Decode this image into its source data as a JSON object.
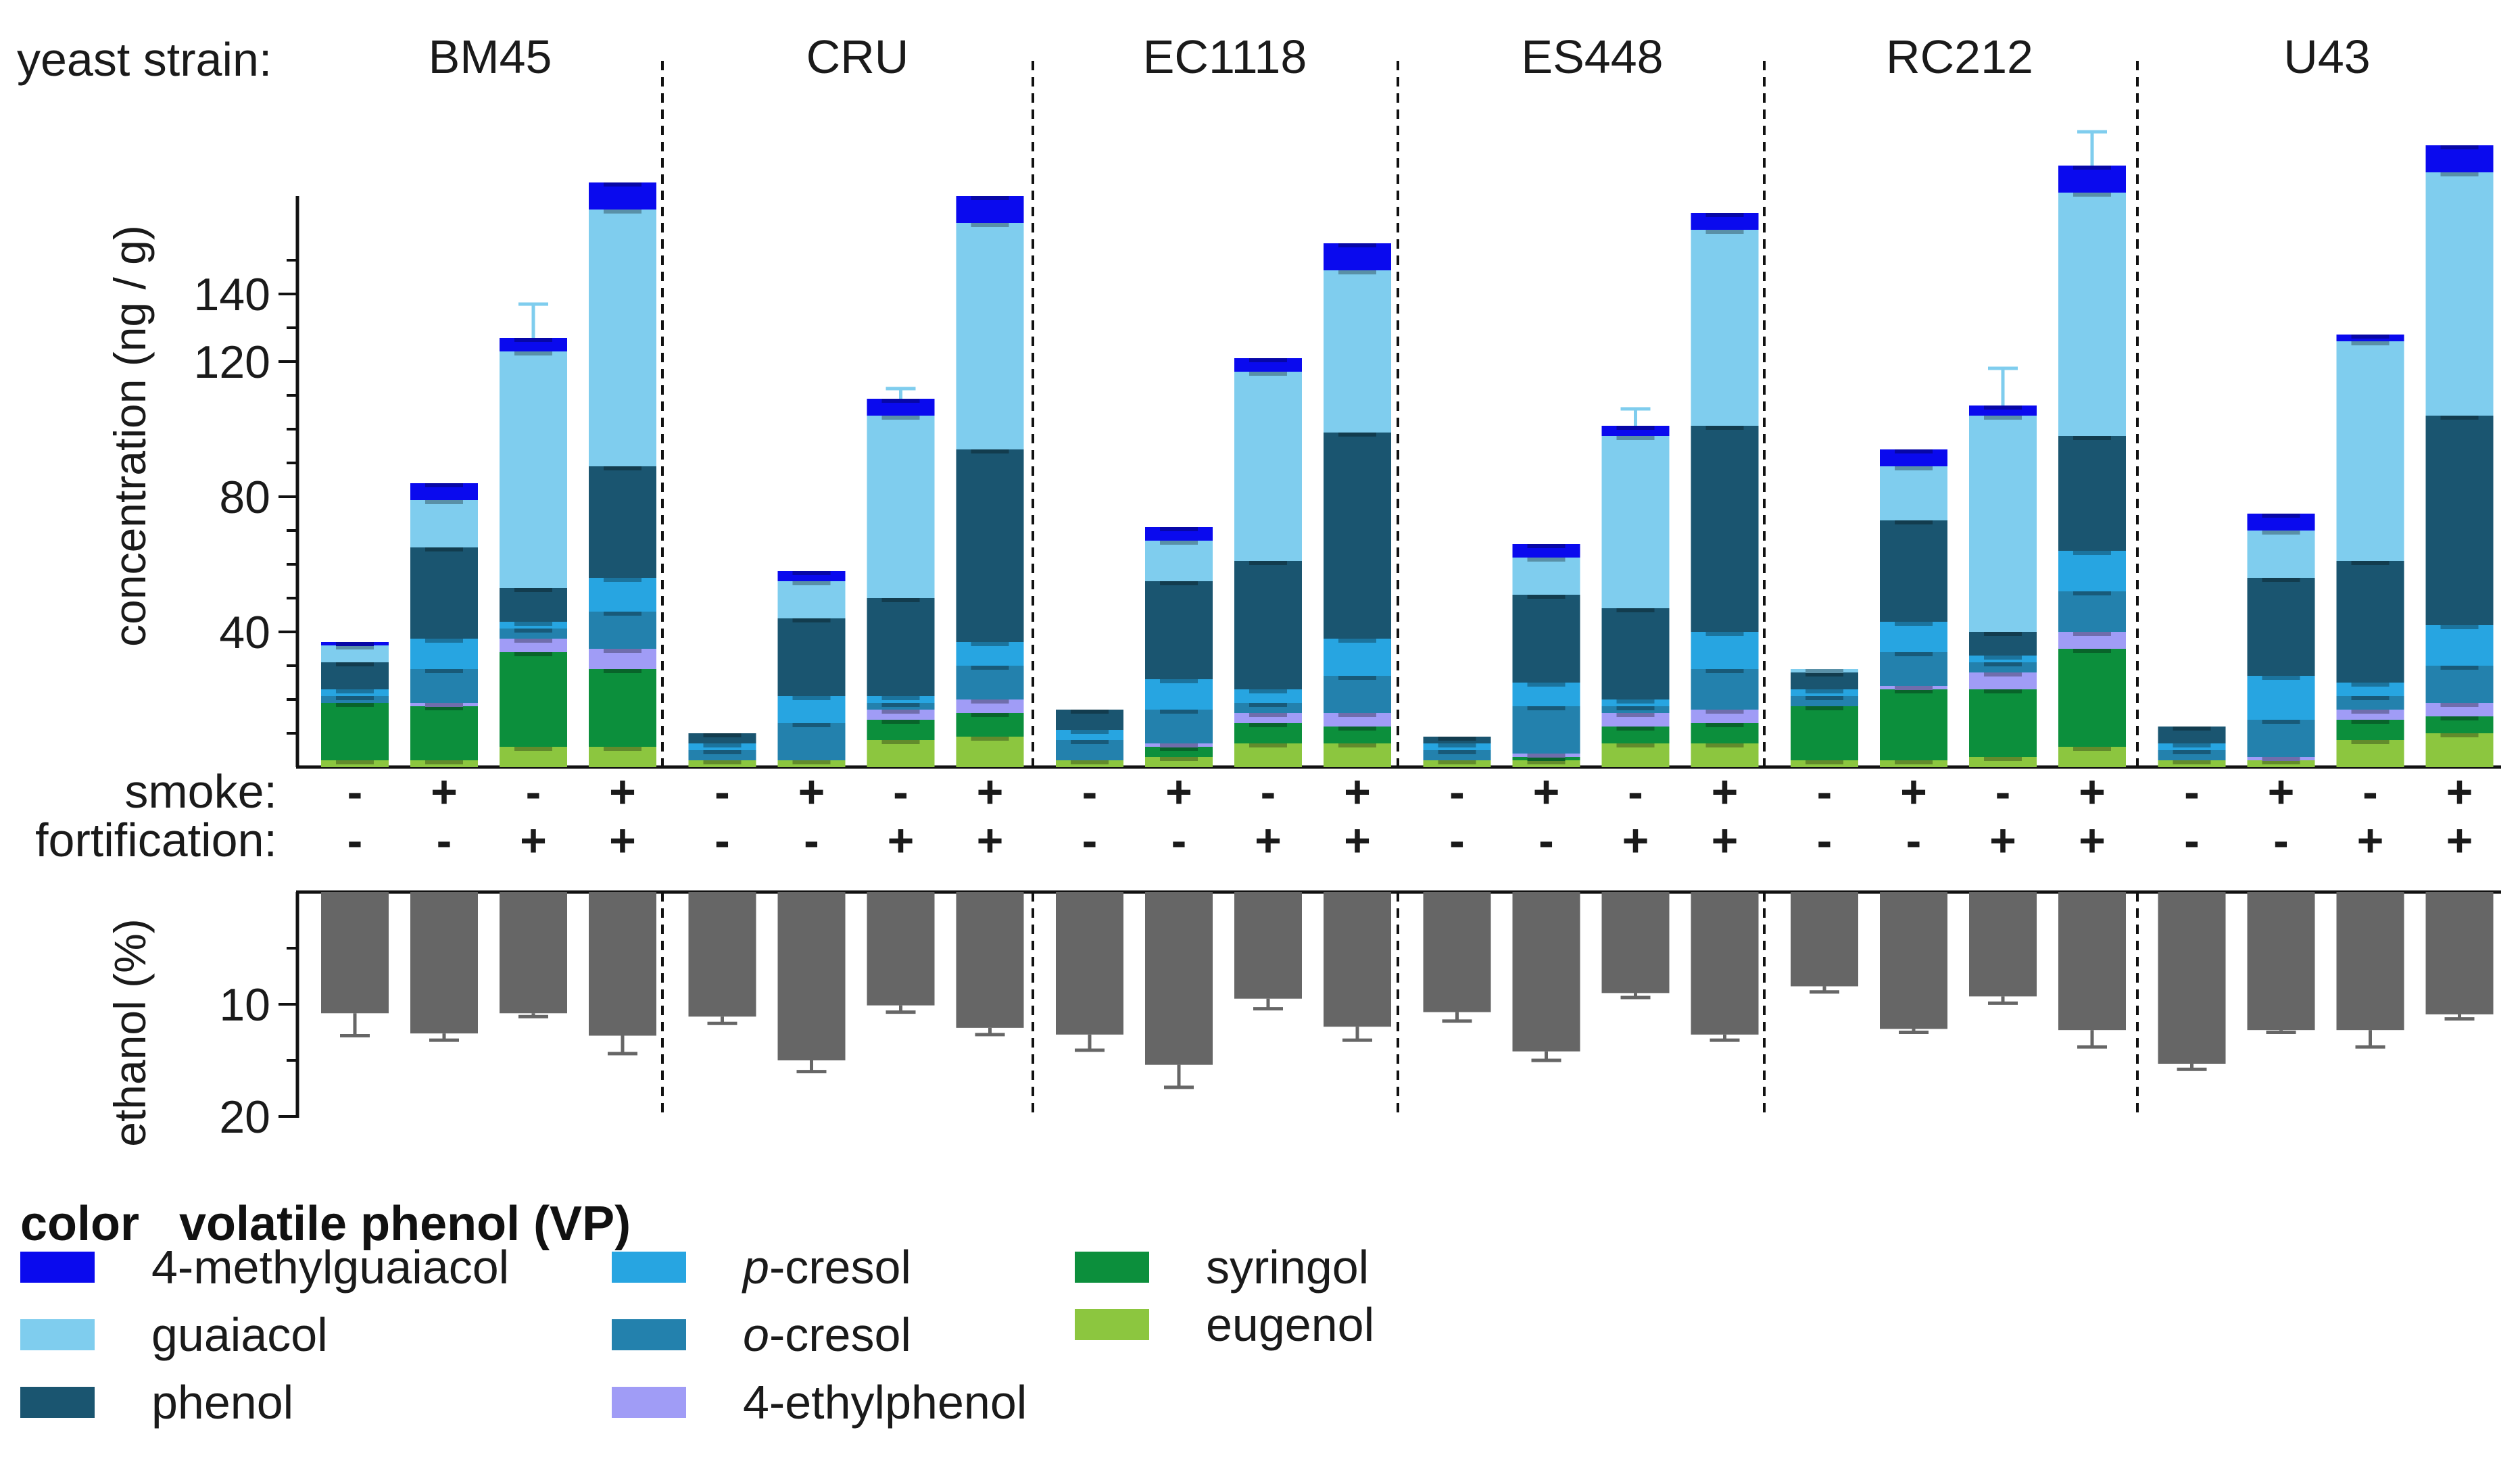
{
  "chart_data": {
    "type": "bar",
    "stacked": true,
    "title": "",
    "strain_axis_label": "yeast strain:",
    "strains": [
      "BM45",
      "CRU",
      "EC1118",
      "ES448",
      "RC212",
      "U43"
    ],
    "treatment_rows": [
      {
        "label": "smoke:",
        "values": [
          "-",
          "+",
          "-",
          "+"
        ]
      },
      {
        "label": "fortification:",
        "values": [
          "-",
          "-",
          "+",
          "+"
        ]
      }
    ],
    "top_panel": {
      "ylabel": "concentration (ng / g)",
      "ylim": [
        0,
        170
      ],
      "yticks": [
        40,
        80,
        120,
        140
      ],
      "series_order_bottom_to_top": [
        "eugenol",
        "syringol",
        "4-ethylphenol",
        "o-cresol",
        "p-cresol",
        "phenol",
        "guaiacol",
        "4-methylguaiacol"
      ],
      "bars": [
        {
          "strain": "BM45",
          "treatment": "smoke- fort-",
          "values": {
            "eugenol": 2,
            "syringol": 17,
            "4-ethylphenol": 0,
            "o-cresol": 2,
            "p-cresol": 2,
            "phenol": 8,
            "guaiacol": 5,
            "4-methylguaiacol": 1
          },
          "total_error": 0
        },
        {
          "strain": "BM45",
          "treatment": "smoke+ fort-",
          "values": {
            "eugenol": 2,
            "syringol": 16,
            "4-ethylphenol": 1,
            "o-cresol": 10,
            "p-cresol": 9,
            "phenol": 27,
            "guaiacol": 14,
            "4-methylguaiacol": 5
          },
          "total_error": 0
        },
        {
          "strain": "BM45",
          "treatment": "smoke- fort+",
          "values": {
            "eugenol": 6,
            "syringol": 28,
            "4-ethylphenol": 4,
            "o-cresol": 3,
            "p-cresol": 2,
            "phenol": 10,
            "guaiacol": 70,
            "4-methylguaiacol": 4
          },
          "total_error": 10
        },
        {
          "strain": "BM45",
          "treatment": "smoke+ fort+",
          "values": {
            "eugenol": 6,
            "syringol": 23,
            "4-ethylphenol": 6,
            "o-cresol": 11,
            "p-cresol": 10,
            "phenol": 33,
            "guaiacol": 76,
            "4-methylguaiacol": 8
          },
          "total_error": 0
        },
        {
          "strain": "CRU",
          "treatment": "smoke- fort-",
          "values": {
            "eugenol": 2,
            "syringol": 0,
            "4-ethylphenol": 0,
            "o-cresol": 3,
            "p-cresol": 2,
            "phenol": 3,
            "guaiacol": 0,
            "4-methylguaiacol": 0
          },
          "total_error": 0
        },
        {
          "strain": "CRU",
          "treatment": "smoke+ fort-",
          "values": {
            "eugenol": 2,
            "syringol": 0,
            "4-ethylphenol": 0,
            "o-cresol": 11,
            "p-cresol": 8,
            "phenol": 23,
            "guaiacol": 11,
            "4-methylguaiacol": 3
          },
          "total_error": 0
        },
        {
          "strain": "CRU",
          "treatment": "smoke- fort+",
          "values": {
            "eugenol": 8,
            "syringol": 6,
            "4-ethylphenol": 3,
            "o-cresol": 2,
            "p-cresol": 2,
            "phenol": 29,
            "guaiacol": 54,
            "4-methylguaiacol": 5
          },
          "total_error": 3
        },
        {
          "strain": "CRU",
          "treatment": "smoke+ fort+",
          "values": {
            "eugenol": 9,
            "syringol": 7,
            "4-ethylphenol": 4,
            "o-cresol": 10,
            "p-cresol": 7,
            "phenol": 57,
            "guaiacol": 67,
            "4-methylguaiacol": 8
          },
          "total_error": 0
        },
        {
          "strain": "EC1118",
          "treatment": "smoke- fort-",
          "values": {
            "eugenol": 2,
            "syringol": 0,
            "4-ethylphenol": 0,
            "o-cresol": 6,
            "p-cresol": 3,
            "phenol": 6,
            "guaiacol": 0,
            "4-methylguaiacol": 0
          },
          "total_error": 0
        },
        {
          "strain": "EC1118",
          "treatment": "smoke+ fort-",
          "values": {
            "eugenol": 3,
            "syringol": 3,
            "4-ethylphenol": 1,
            "o-cresol": 10,
            "p-cresol": 9,
            "phenol": 29,
            "guaiacol": 12,
            "4-methylguaiacol": 4
          },
          "total_error": 0
        },
        {
          "strain": "EC1118",
          "treatment": "smoke- fort+",
          "values": {
            "eugenol": 7,
            "syringol": 6,
            "4-ethylphenol": 3,
            "o-cresol": 3,
            "p-cresol": 4,
            "phenol": 38,
            "guaiacol": 56,
            "4-methylguaiacol": 4
          },
          "total_error": 0
        },
        {
          "strain": "EC1118",
          "treatment": "smoke+ fort+",
          "values": {
            "eugenol": 7,
            "syringol": 5,
            "4-ethylphenol": 4,
            "o-cresol": 11,
            "p-cresol": 11,
            "phenol": 61,
            "guaiacol": 48,
            "4-methylguaiacol": 8
          },
          "total_error": 0
        },
        {
          "strain": "ES448",
          "treatment": "smoke- fort-",
          "values": {
            "eugenol": 2,
            "syringol": 0,
            "4-ethylphenol": 0,
            "o-cresol": 3,
            "p-cresol": 2,
            "phenol": 2,
            "guaiacol": 0,
            "4-methylguaiacol": 0
          },
          "total_error": 0
        },
        {
          "strain": "ES448",
          "treatment": "smoke+ fort-",
          "values": {
            "eugenol": 2,
            "syringol": 1,
            "4-ethylphenol": 1,
            "o-cresol": 14,
            "p-cresol": 7,
            "phenol": 26,
            "guaiacol": 11,
            "4-methylguaiacol": 4
          },
          "total_error": 0
        },
        {
          "strain": "ES448",
          "treatment": "smoke- fort+",
          "values": {
            "eugenol": 7,
            "syringol": 5,
            "4-ethylphenol": 4,
            "o-cresol": 2,
            "p-cresol": 2,
            "phenol": 27,
            "guaiacol": 51,
            "4-methylguaiacol": 3
          },
          "total_error": 5
        },
        {
          "strain": "ES448",
          "treatment": "smoke+ fort+",
          "values": {
            "eugenol": 7,
            "syringol": 6,
            "4-ethylphenol": 4,
            "o-cresol": 12,
            "p-cresol": 11,
            "phenol": 61,
            "guaiacol": 58,
            "4-methylguaiacol": 5
          },
          "total_error": 0
        },
        {
          "strain": "RC212",
          "treatment": "smoke- fort-",
          "values": {
            "eugenol": 2,
            "syringol": 16,
            "4-ethylphenol": 0,
            "o-cresol": 3,
            "p-cresol": 2,
            "phenol": 5,
            "guaiacol": 1,
            "4-methylguaiacol": 0
          },
          "total_error": 0
        },
        {
          "strain": "RC212",
          "treatment": "smoke+ fort-",
          "values": {
            "eugenol": 2,
            "syringol": 21,
            "4-ethylphenol": 1,
            "o-cresol": 10,
            "p-cresol": 9,
            "phenol": 30,
            "guaiacol": 16,
            "4-methylguaiacol": 5
          },
          "total_error": 0
        },
        {
          "strain": "RC212",
          "treatment": "smoke- fort+",
          "values": {
            "eugenol": 3,
            "syringol": 20,
            "4-ethylphenol": 5,
            "o-cresol": 3,
            "p-cresol": 2,
            "phenol": 7,
            "guaiacol": 64,
            "4-methylguaiacol": 3
          },
          "total_error": 11
        },
        {
          "strain": "RC212",
          "treatment": "smoke+ fort+",
          "values": {
            "eugenol": 6,
            "syringol": 29,
            "4-ethylphenol": 5,
            "o-cresol": 12,
            "p-cresol": 12,
            "phenol": 34,
            "guaiacol": 72,
            "4-methylguaiacol": 8
          },
          "total_error": 10
        },
        {
          "strain": "U43",
          "treatment": "smoke- fort-",
          "values": {
            "eugenol": 2,
            "syringol": 0,
            "4-ethylphenol": 0,
            "o-cresol": 3,
            "p-cresol": 2,
            "phenol": 5,
            "guaiacol": 0,
            "4-methylguaiacol": 0
          },
          "total_error": 0
        },
        {
          "strain": "U43",
          "treatment": "smoke+ fort-",
          "values": {
            "eugenol": 2,
            "syringol": 0,
            "4-ethylphenol": 1,
            "o-cresol": 11,
            "p-cresol": 13,
            "phenol": 29,
            "guaiacol": 14,
            "4-methylguaiacol": 5
          },
          "total_error": 0
        },
        {
          "strain": "U43",
          "treatment": "smoke- fort+",
          "values": {
            "eugenol": 8,
            "syringol": 6,
            "4-ethylphenol": 3,
            "o-cresol": 4,
            "p-cresol": 4,
            "phenol": 36,
            "guaiacol": 65,
            "4-methylguaiacol": 2
          },
          "total_error": 0
        },
        {
          "strain": "U43",
          "treatment": "smoke+ fort+",
          "values": {
            "eugenol": 10,
            "syringol": 5,
            "4-ethylphenol": 4,
            "o-cresol": 11,
            "p-cresol": 12,
            "phenol": 62,
            "guaiacol": 72,
            "4-methylguaiacol": 8
          },
          "total_error": 0
        }
      ]
    },
    "bottom_panel": {
      "ylabel": "ethanol (%)",
      "ylim": [
        0,
        20
      ],
      "inverted": true,
      "yticks": [
        10,
        20
      ],
      "values": [
        10.8,
        12.6,
        10.8,
        12.8,
        11.1,
        15.0,
        10.1,
        12.1,
        12.7,
        15.4,
        9.5,
        12.0,
        10.7,
        14.2,
        9.0,
        12.7,
        8.4,
        12.2,
        9.3,
        12.3,
        15.3,
        12.3,
        12.3,
        10.9
      ],
      "errors": [
        2.0,
        0.6,
        0.3,
        1.6,
        0.6,
        1.0,
        0.6,
        0.6,
        1.4,
        2.0,
        0.9,
        1.2,
        0.8,
        0.8,
        0.4,
        0.5,
        0.5,
        0.3,
        0.6,
        1.5,
        0.5,
        0.2,
        1.5,
        0.4
      ]
    }
  },
  "legend": {
    "header_color": "color",
    "header_vp": "volatile phenol (VP)",
    "items": [
      {
        "name": "4-methylguaiacol",
        "color": "#0a0aee",
        "italic_prefix": ""
      },
      {
        "name": "guaiacol",
        "color": "#7fcdee",
        "italic_prefix": ""
      },
      {
        "name": "phenol",
        "color": "#1a5570",
        "italic_prefix": ""
      },
      {
        "name": "-cresol",
        "color": "#27a5e1",
        "italic_prefix": "p"
      },
      {
        "name": "-cresol",
        "color": "#2381ad",
        "italic_prefix": "o"
      },
      {
        "name": "4-ethylphenol",
        "color": "#a09cf6",
        "italic_prefix": ""
      },
      {
        "name": "syringol",
        "color": "#0c8f3c",
        "italic_prefix": ""
      },
      {
        "name": "eugenol",
        "color": "#8cc63f",
        "italic_prefix": ""
      }
    ]
  },
  "colors": {
    "ethanol_bar": "#666666",
    "axis": "#111111"
  }
}
